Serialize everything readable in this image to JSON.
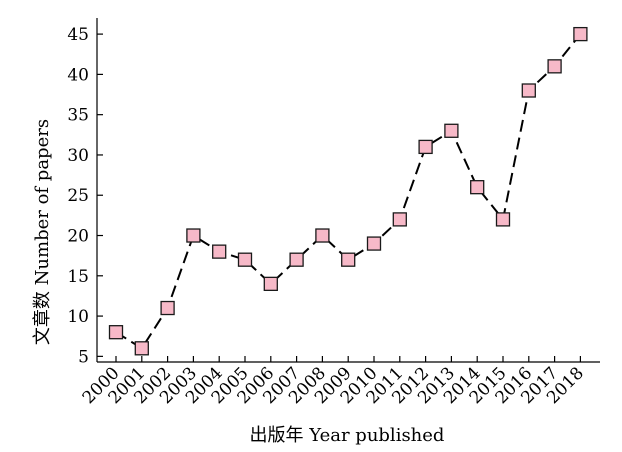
{
  "chart_data": {
    "type": "line",
    "x": [
      "2000",
      "2001",
      "2002",
      "2003",
      "2004",
      "2005",
      "2006",
      "2007",
      "2008",
      "2009",
      "2010",
      "2011",
      "2012",
      "2013",
      "2014",
      "2015",
      "2016",
      "2017",
      "2018"
    ],
    "series": [
      {
        "values": [
          8,
          6,
          11,
          20,
          18,
          17,
          14,
          17,
          20,
          17,
          19,
          22,
          31,
          33,
          26,
          22,
          38,
          41,
          45
        ]
      }
    ],
    "xlabel": "出版年 Year published",
    "ylabel": "文章数 Number of papers",
    "ylim": [
      4.3,
      47
    ],
    "yticks": [
      5,
      10,
      15,
      20,
      25,
      30,
      35,
      40,
      45
    ],
    "grid": false,
    "legend": "none",
    "marker": "square",
    "line_style": "dashed",
    "colors": {
      "marker_fill": "#f7b9c8",
      "marker_stroke": "#1a1a1a",
      "line": "#000000"
    }
  }
}
